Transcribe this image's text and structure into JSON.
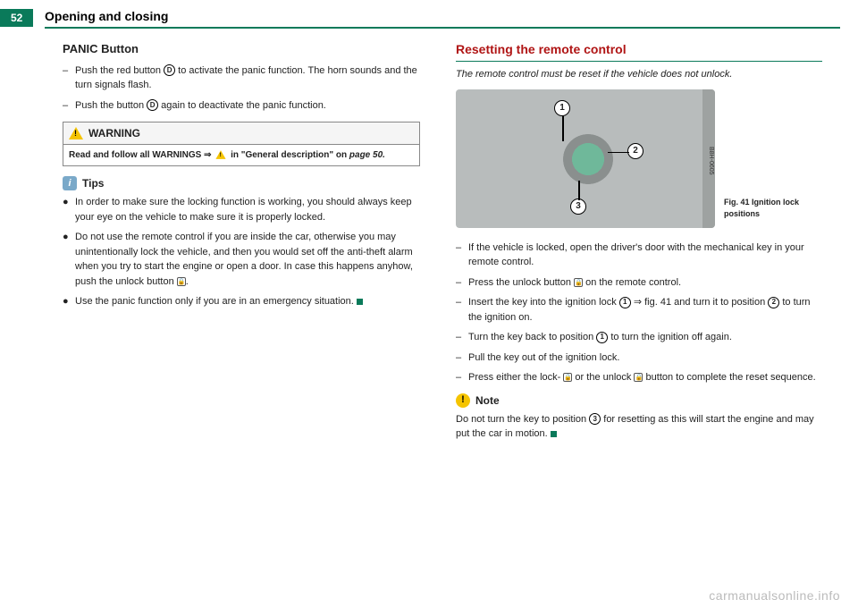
{
  "page_number": "52",
  "chapter": "Opening and closing",
  "left": {
    "heading": "PANIC Button",
    "items": [
      "Push the red button |D| to activate the panic function. The horn sounds and the turn signals flash.",
      "Push the button |D| again to deactivate the panic func­tion."
    ],
    "warning_label": "WARNING",
    "warning_text_a": "Read and follow all WARNINGS ⇒ ",
    "warning_text_b": " in \"General description\" on ",
    "warning_page": "page 50.",
    "tips_label": "Tips",
    "tips": [
      "In order to make sure the locking function is working, you should always keep your eye on the vehicle to make sure it is properly locked.",
      "Do not use the remote control if you are inside the car, otherwise you may unintentionally lock the vehicle, and then you would set off the anti-theft alarm when you try to start the engine or open a door. In case this happens anyhow, push the unlock button |L|.",
      "Use the panic function only if you are in an emergency situation."
    ]
  },
  "right": {
    "heading": "Resetting the remote control",
    "intro": "The remote control must be reset if the vehicle does not unlock.",
    "fig_sidetext": "B8H-0605",
    "fig_caption": "Fig. 41  Ignition lock positions",
    "steps": [
      "If the vehicle is locked, open the driver's door with the mechanical key in your remote control.",
      "Press the unlock button |L| on the remote control.",
      "Insert the key into the ignition lock |1| ⇒ fig. 41 and turn it to position |2| to turn the ignition on.",
      "Turn the key back to position |1| to turn the ignition off again.",
      "Pull the key out of the ignition lock.",
      "Press either the lock- |L| or the unlock |L| button to complete the reset sequence."
    ],
    "note_label": "Note",
    "note_text": "Do not turn the key to position |3| for resetting as this will start the engine and may put the car in motion."
  },
  "watermark": "carmanualsonline.info"
}
